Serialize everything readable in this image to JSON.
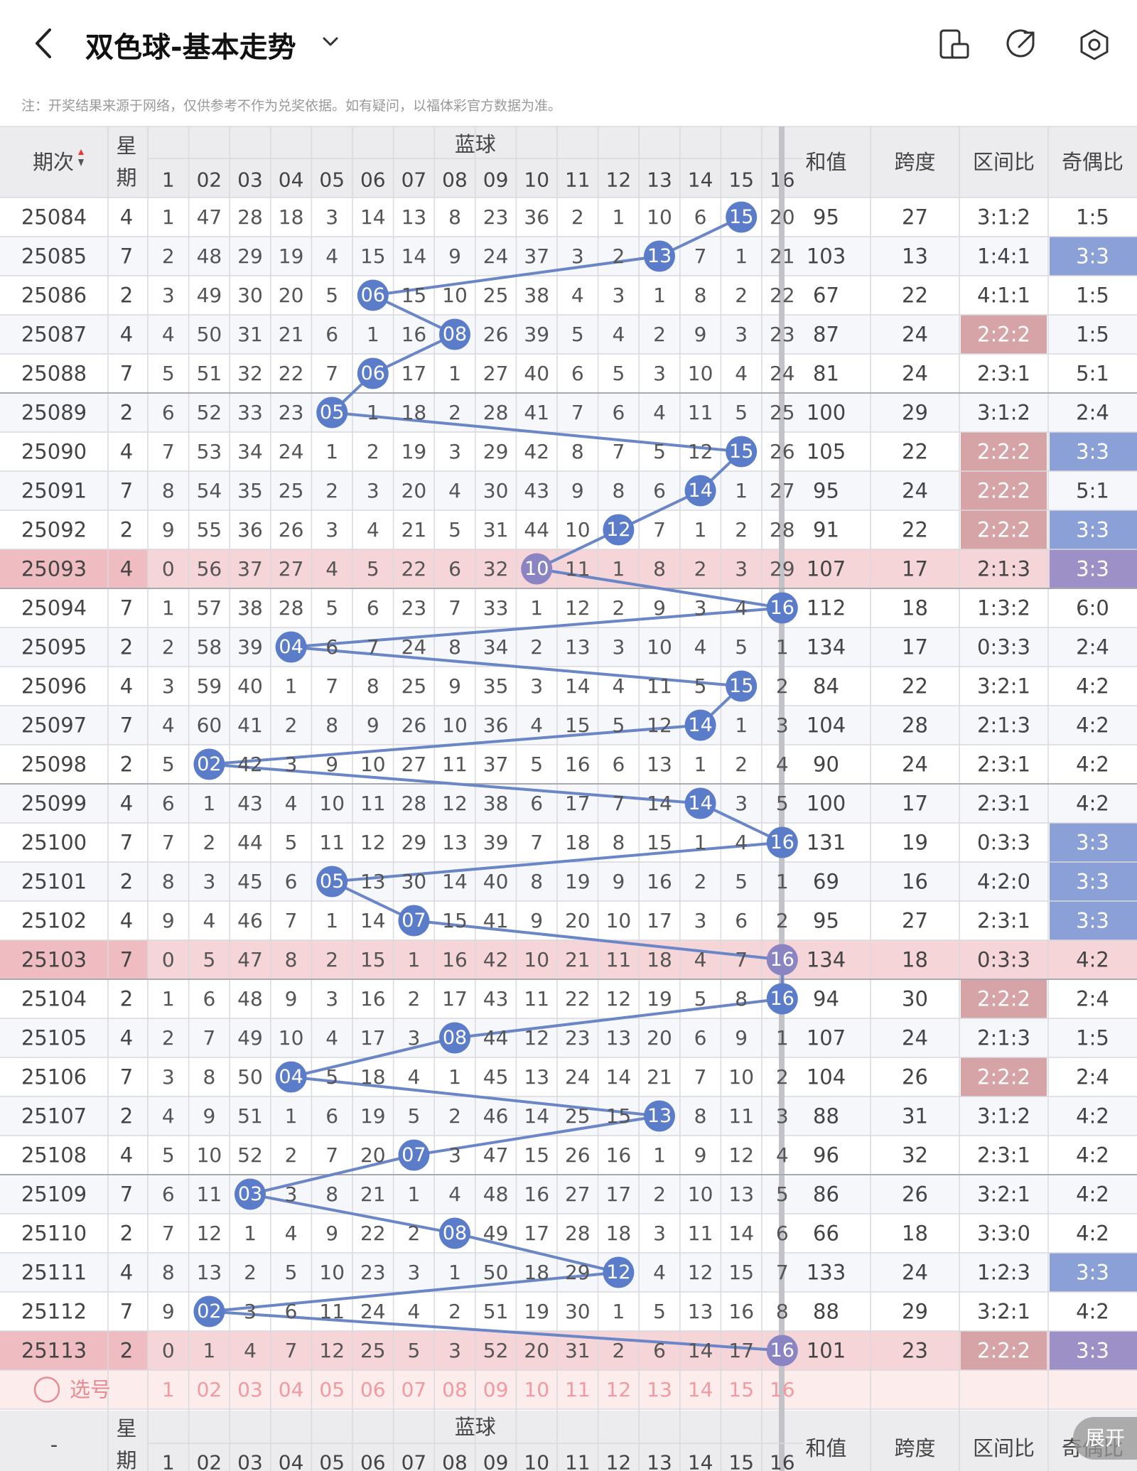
{
  "header": {
    "title": "双色球-基本走势",
    "note": "注：开奖结果来源于网络，仅供参考不作为兑奖依据。如有疑问，以福体彩官方数据为准。"
  },
  "icons": {
    "back": "back-arrow-icon",
    "dropdown": "chevron-down-icon",
    "icon1": "phone-layout-icon",
    "icon2": "share-icon",
    "icon3": "settings-hexagon-icon"
  },
  "table_header": {
    "period": "期次",
    "weekday": "星期",
    "weekday_top": "星",
    "weekday_bottom": "期",
    "blue_ball": "蓝球",
    "sum": "和值",
    "span": "跨度",
    "zone_ratio": "区间比",
    "odd_even": "奇偶比",
    "balls": [
      "1",
      "02",
      "03",
      "04",
      "05",
      "06",
      "07",
      "08",
      "09",
      "10",
      "11",
      "12",
      "13",
      "14",
      "15",
      "16"
    ]
  },
  "colors": {
    "ball_blue": "#5b7cc9",
    "line_blue": "#6a86c6",
    "row_red": "#f5d5d8",
    "cell_blue": "#8aa0d6",
    "cell_red": "#d6a3a6",
    "cell_purple": "#9c90c6"
  },
  "rows": [
    {
      "period": "25084",
      "wd": "4",
      "cells": [
        "1",
        "47",
        "28",
        "18",
        "3",
        "14",
        "13",
        "8",
        "23",
        "36",
        "2",
        "1",
        "10",
        "6",
        "15",
        "20"
      ],
      "hit": 15,
      "sum": "95",
      "span": "27",
      "zone": "3:1:2",
      "oe": "1:5",
      "zoneHL": "",
      "oeHL": "",
      "rowHL": false
    },
    {
      "period": "25085",
      "wd": "7",
      "cells": [
        "2",
        "48",
        "29",
        "19",
        "4",
        "15",
        "14",
        "9",
        "24",
        "37",
        "3",
        "2",
        "13",
        "7",
        "1",
        "21"
      ],
      "hit": 13,
      "sum": "103",
      "span": "13",
      "zone": "1:4:1",
      "oe": "3:3",
      "zoneHL": "",
      "oeHL": "blue",
      "rowHL": false
    },
    {
      "period": "25086",
      "wd": "2",
      "cells": [
        "3",
        "49",
        "30",
        "20",
        "5",
        "06",
        "15",
        "10",
        "25",
        "38",
        "4",
        "3",
        "1",
        "8",
        "2",
        "22"
      ],
      "hit": 6,
      "sum": "67",
      "span": "22",
      "zone": "4:1:1",
      "oe": "1:5",
      "zoneHL": "",
      "oeHL": "",
      "rowHL": false
    },
    {
      "period": "25087",
      "wd": "4",
      "cells": [
        "4",
        "50",
        "31",
        "21",
        "6",
        "1",
        "16",
        "08",
        "26",
        "39",
        "5",
        "4",
        "2",
        "9",
        "3",
        "23"
      ],
      "hit": 8,
      "sum": "87",
      "span": "24",
      "zone": "2:2:2",
      "oe": "1:5",
      "zoneHL": "red",
      "oeHL": "",
      "rowHL": false
    },
    {
      "period": "25088",
      "wd": "7",
      "cells": [
        "5",
        "51",
        "32",
        "22",
        "7",
        "06",
        "17",
        "1",
        "27",
        "40",
        "6",
        "5",
        "3",
        "10",
        "4",
        "24"
      ],
      "hit": 6,
      "sum": "81",
      "span": "24",
      "zone": "2:3:1",
      "oe": "5:1",
      "zoneHL": "",
      "oeHL": "",
      "rowHL": false
    },
    {
      "period": "25089",
      "wd": "2",
      "cells": [
        "6",
        "52",
        "33",
        "23",
        "05",
        "1",
        "18",
        "2",
        "28",
        "41",
        "7",
        "6",
        "4",
        "11",
        "5",
        "25"
      ],
      "hit": 5,
      "sum": "100",
      "span": "29",
      "zone": "3:1:2",
      "oe": "2:4",
      "zoneHL": "",
      "oeHL": "",
      "rowHL": false
    },
    {
      "period": "25090",
      "wd": "4",
      "cells": [
        "7",
        "53",
        "34",
        "24",
        "1",
        "2",
        "19",
        "3",
        "29",
        "42",
        "8",
        "7",
        "5",
        "12",
        "15",
        "26"
      ],
      "hit": 15,
      "sum": "105",
      "span": "22",
      "zone": "2:2:2",
      "oe": "3:3",
      "zoneHL": "red",
      "oeHL": "blue",
      "rowHL": false
    },
    {
      "period": "25091",
      "wd": "7",
      "cells": [
        "8",
        "54",
        "35",
        "25",
        "2",
        "3",
        "20",
        "4",
        "30",
        "43",
        "9",
        "8",
        "6",
        "14",
        "1",
        "27"
      ],
      "hit": 14,
      "sum": "95",
      "span": "24",
      "zone": "2:2:2",
      "oe": "5:1",
      "zoneHL": "red",
      "oeHL": "",
      "rowHL": false
    },
    {
      "period": "25092",
      "wd": "2",
      "cells": [
        "9",
        "55",
        "36",
        "26",
        "3",
        "4",
        "21",
        "5",
        "31",
        "44",
        "10",
        "12",
        "7",
        "1",
        "2",
        "28"
      ],
      "hit": 12,
      "sum": "91",
      "span": "22",
      "zone": "2:2:2",
      "oe": "3:3",
      "zoneHL": "red",
      "oeHL": "blue",
      "rowHL": false
    },
    {
      "period": "25093",
      "wd": "4",
      "cells": [
        "0",
        "56",
        "37",
        "27",
        "4",
        "5",
        "22",
        "6",
        "32",
        "10",
        "11",
        "1",
        "8",
        "2",
        "3",
        "29"
      ],
      "hit": 10,
      "sum": "107",
      "span": "17",
      "zone": "2:1:3",
      "oe": "3:3",
      "zoneHL": "",
      "oeHL": "purple",
      "rowHL": true
    },
    {
      "period": "25094",
      "wd": "7",
      "cells": [
        "1",
        "57",
        "38",
        "28",
        "5",
        "6",
        "23",
        "7",
        "33",
        "1",
        "12",
        "2",
        "9",
        "3",
        "4",
        "16"
      ],
      "hit": 16,
      "sum": "112",
      "span": "18",
      "zone": "1:3:2",
      "oe": "6:0",
      "zoneHL": "",
      "oeHL": "",
      "rowHL": false
    },
    {
      "period": "25095",
      "wd": "2",
      "cells": [
        "2",
        "58",
        "39",
        "04",
        "6",
        "7",
        "24",
        "8",
        "34",
        "2",
        "13",
        "3",
        "10",
        "4",
        "5",
        "1"
      ],
      "hit": 4,
      "sum": "134",
      "span": "17",
      "zone": "0:3:3",
      "oe": "2:4",
      "zoneHL": "",
      "oeHL": "",
      "rowHL": false
    },
    {
      "period": "25096",
      "wd": "4",
      "cells": [
        "3",
        "59",
        "40",
        "1",
        "7",
        "8",
        "25",
        "9",
        "35",
        "3",
        "14",
        "4",
        "11",
        "5",
        "15",
        "2"
      ],
      "hit": 15,
      "sum": "84",
      "span": "22",
      "zone": "3:2:1",
      "oe": "4:2",
      "zoneHL": "",
      "oeHL": "",
      "rowHL": false
    },
    {
      "period": "25097",
      "wd": "7",
      "cells": [
        "4",
        "60",
        "41",
        "2",
        "8",
        "9",
        "26",
        "10",
        "36",
        "4",
        "15",
        "5",
        "12",
        "14",
        "1",
        "3"
      ],
      "hit": 14,
      "sum": "104",
      "span": "28",
      "zone": "2:1:3",
      "oe": "4:2",
      "zoneHL": "",
      "oeHL": "",
      "rowHL": false
    },
    {
      "period": "25098",
      "wd": "2",
      "cells": [
        "5",
        "02",
        "42",
        "3",
        "9",
        "10",
        "27",
        "11",
        "37",
        "5",
        "16",
        "6",
        "13",
        "1",
        "2",
        "4"
      ],
      "hit": 2,
      "sum": "90",
      "span": "24",
      "zone": "2:3:1",
      "oe": "4:2",
      "zoneHL": "",
      "oeHL": "",
      "rowHL": false
    },
    {
      "period": "25099",
      "wd": "4",
      "cells": [
        "6",
        "1",
        "43",
        "4",
        "10",
        "11",
        "28",
        "12",
        "38",
        "6",
        "17",
        "7",
        "14",
        "14",
        "3",
        "5"
      ],
      "hit": 14,
      "sum": "100",
      "span": "17",
      "zone": "2:3:1",
      "oe": "4:2",
      "zoneHL": "",
      "oeHL": "",
      "rowHL": false
    },
    {
      "period": "25100",
      "wd": "7",
      "cells": [
        "7",
        "2",
        "44",
        "5",
        "11",
        "12",
        "29",
        "13",
        "39",
        "7",
        "18",
        "8",
        "15",
        "1",
        "4",
        "16"
      ],
      "hit": 16,
      "sum": "131",
      "span": "19",
      "zone": "0:3:3",
      "oe": "3:3",
      "zoneHL": "",
      "oeHL": "blue",
      "rowHL": false
    },
    {
      "period": "25101",
      "wd": "2",
      "cells": [
        "8",
        "3",
        "45",
        "6",
        "05",
        "13",
        "30",
        "14",
        "40",
        "8",
        "19",
        "9",
        "16",
        "2",
        "5",
        "1"
      ],
      "hit": 5,
      "sum": "69",
      "span": "16",
      "zone": "4:2:0",
      "oe": "3:3",
      "zoneHL": "",
      "oeHL": "blue",
      "rowHL": false
    },
    {
      "period": "25102",
      "wd": "4",
      "cells": [
        "9",
        "4",
        "46",
        "7",
        "1",
        "14",
        "07",
        "15",
        "41",
        "9",
        "20",
        "10",
        "17",
        "3",
        "6",
        "2"
      ],
      "hit": 7,
      "sum": "95",
      "span": "27",
      "zone": "2:3:1",
      "oe": "3:3",
      "zoneHL": "",
      "oeHL": "blue",
      "rowHL": false
    },
    {
      "period": "25103",
      "wd": "7",
      "cells": [
        "0",
        "5",
        "47",
        "8",
        "2",
        "15",
        "1",
        "16",
        "42",
        "10",
        "21",
        "11",
        "18",
        "4",
        "7",
        "16"
      ],
      "hit": 16,
      "sum": "134",
      "span": "18",
      "zone": "0:3:3",
      "oe": "4:2",
      "zoneHL": "",
      "oeHL": "",
      "rowHL": true
    },
    {
      "period": "25104",
      "wd": "2",
      "cells": [
        "1",
        "6",
        "48",
        "9",
        "3",
        "16",
        "2",
        "17",
        "43",
        "11",
        "22",
        "12",
        "19",
        "5",
        "8",
        "16"
      ],
      "hit": 16,
      "sum": "94",
      "span": "30",
      "zone": "2:2:2",
      "oe": "2:4",
      "zoneHL": "red",
      "oeHL": "",
      "rowHL": false
    },
    {
      "period": "25105",
      "wd": "4",
      "cells": [
        "2",
        "7",
        "49",
        "10",
        "4",
        "17",
        "3",
        "08",
        "44",
        "12",
        "23",
        "13",
        "20",
        "6",
        "9",
        "1"
      ],
      "hit": 8,
      "sum": "107",
      "span": "24",
      "zone": "2:1:3",
      "oe": "1:5",
      "zoneHL": "",
      "oeHL": "",
      "rowHL": false
    },
    {
      "period": "25106",
      "wd": "7",
      "cells": [
        "3",
        "8",
        "50",
        "04",
        "5",
        "18",
        "4",
        "1",
        "45",
        "13",
        "24",
        "14",
        "21",
        "7",
        "10",
        "2"
      ],
      "hit": 4,
      "sum": "104",
      "span": "26",
      "zone": "2:2:2",
      "oe": "2:4",
      "zoneHL": "red",
      "oeHL": "",
      "rowHL": false
    },
    {
      "period": "25107",
      "wd": "2",
      "cells": [
        "4",
        "9",
        "51",
        "1",
        "6",
        "19",
        "5",
        "2",
        "46",
        "14",
        "25",
        "15",
        "13",
        "8",
        "11",
        "3"
      ],
      "hit": 13,
      "sum": "88",
      "span": "31",
      "zone": "3:1:2",
      "oe": "4:2",
      "zoneHL": "",
      "oeHL": "",
      "rowHL": false
    },
    {
      "period": "25108",
      "wd": "4",
      "cells": [
        "5",
        "10",
        "52",
        "2",
        "7",
        "20",
        "07",
        "3",
        "47",
        "15",
        "26",
        "16",
        "1",
        "9",
        "12",
        "4"
      ],
      "hit": 7,
      "sum": "96",
      "span": "32",
      "zone": "2:3:1",
      "oe": "4:2",
      "zoneHL": "",
      "oeHL": "",
      "rowHL": false
    },
    {
      "period": "25109",
      "wd": "7",
      "cells": [
        "6",
        "11",
        "03",
        "3",
        "8",
        "21",
        "1",
        "4",
        "48",
        "16",
        "27",
        "17",
        "2",
        "10",
        "13",
        "5"
      ],
      "hit": 3,
      "sum": "86",
      "span": "26",
      "zone": "3:2:1",
      "oe": "4:2",
      "zoneHL": "",
      "oeHL": "",
      "rowHL": false
    },
    {
      "period": "25110",
      "wd": "2",
      "cells": [
        "7",
        "12",
        "1",
        "4",
        "9",
        "22",
        "2",
        "08",
        "49",
        "17",
        "28",
        "18",
        "3",
        "11",
        "14",
        "6"
      ],
      "hit": 8,
      "sum": "66",
      "span": "18",
      "zone": "3:3:0",
      "oe": "4:2",
      "zoneHL": "",
      "oeHL": "",
      "rowHL": false
    },
    {
      "period": "25111",
      "wd": "4",
      "cells": [
        "8",
        "13",
        "2",
        "5",
        "10",
        "23",
        "3",
        "1",
        "50",
        "18",
        "29",
        "12",
        "4",
        "12",
        "15",
        "7"
      ],
      "hit": 12,
      "sum": "133",
      "span": "24",
      "zone": "1:2:3",
      "oe": "3:3",
      "zoneHL": "",
      "oeHL": "blue",
      "rowHL": false
    },
    {
      "period": "25112",
      "wd": "7",
      "cells": [
        "9",
        "02",
        "3",
        "6",
        "11",
        "24",
        "4",
        "2",
        "51",
        "19",
        "30",
        "1",
        "5",
        "13",
        "16",
        "8"
      ],
      "hit": 2,
      "sum": "88",
      "span": "29",
      "zone": "3:2:1",
      "oe": "4:2",
      "zoneHL": "",
      "oeHL": "",
      "rowHL": false
    },
    {
      "period": "25113",
      "wd": "2",
      "cells": [
        "0",
        "1",
        "4",
        "7",
        "12",
        "25",
        "5",
        "3",
        "52",
        "20",
        "31",
        "2",
        "6",
        "14",
        "17",
        "16"
      ],
      "hit": 16,
      "sum": "101",
      "span": "23",
      "zone": "2:2:2",
      "oe": "3:3",
      "zoneHL": "red",
      "oeHL": "purple",
      "rowHL": true
    }
  ],
  "select_row": {
    "label": "选号",
    "balls": [
      "1",
      "02",
      "03",
      "04",
      "05",
      "06",
      "07",
      "08",
      "09",
      "10",
      "11",
      "12",
      "13",
      "14",
      "15",
      "16"
    ]
  },
  "footer_header": {
    "dash": "-"
  },
  "fab": {
    "label": "展开"
  }
}
